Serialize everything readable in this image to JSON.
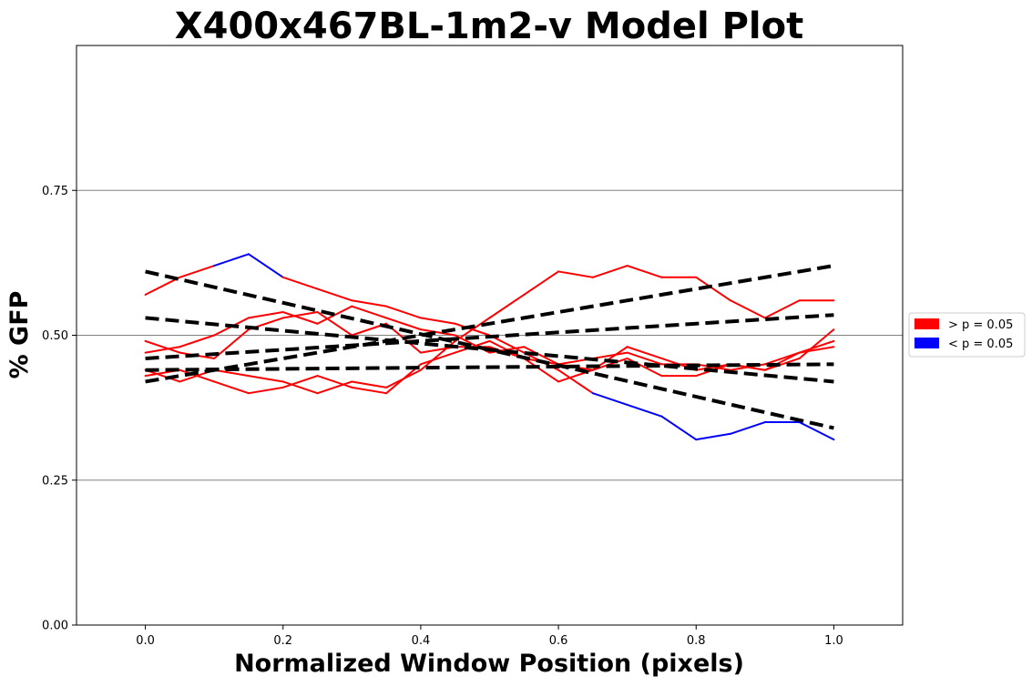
{
  "chart_data": {
    "type": "line",
    "title": "X400x467BL-1m2-v Model Plot",
    "xlabel": "Normalized Window Position (pixels)",
    "ylabel": "% GFP",
    "xlim": [
      -0.1,
      1.1
    ],
    "ylim": [
      0.0,
      1.0
    ],
    "xticks": [
      "0.0",
      "0.2",
      "0.4",
      "0.6",
      "0.8",
      "1.0"
    ],
    "yticks": [
      "0.00",
      "0.25",
      "0.50",
      "0.75"
    ],
    "grid": "horizontal",
    "legend_position": "right-outside",
    "legend": [
      {
        "label": "> p = 0.05",
        "color": "#ff0000"
      },
      {
        "label": "< p = 0.05",
        "color": "#0000ff"
      }
    ],
    "series": [
      {
        "x": [
          0.0,
          0.05,
          0.1,
          0.15,
          0.2,
          0.25,
          0.3,
          0.35,
          0.4,
          0.45,
          0.5,
          0.55,
          0.6,
          0.65,
          0.7,
          0.75,
          0.8,
          0.85,
          0.9,
          0.95,
          1.0
        ],
        "y": [
          0.57,
          0.6,
          0.62,
          0.64,
          0.6,
          0.58,
          0.56,
          0.55,
          0.53,
          0.52,
          0.5,
          0.47,
          0.44,
          0.4,
          0.38,
          0.36,
          0.32,
          0.33,
          0.35,
          0.35,
          0.32
        ],
        "significant": [
          false,
          false,
          true,
          true,
          true,
          false,
          false,
          false,
          false,
          false,
          false,
          false,
          false,
          true,
          true,
          true,
          true,
          true,
          true,
          true,
          true
        ]
      },
      {
        "x": [
          0.0,
          0.05,
          0.1,
          0.15,
          0.2,
          0.25,
          0.3,
          0.35,
          0.4,
          0.45,
          0.5,
          0.55,
          0.6,
          0.65,
          0.7,
          0.75,
          0.8,
          0.85,
          0.9,
          0.95,
          1.0
        ],
        "y": [
          0.44,
          0.42,
          0.44,
          0.43,
          0.42,
          0.4,
          0.42,
          0.41,
          0.44,
          0.49,
          0.53,
          0.57,
          0.61,
          0.6,
          0.62,
          0.6,
          0.6,
          0.56,
          0.53,
          0.56,
          0.56
        ],
        "significant": [
          false,
          false,
          false,
          false,
          false,
          false,
          false,
          false,
          false,
          false,
          false,
          false,
          true,
          false,
          true,
          false,
          true,
          false,
          false,
          false,
          false
        ]
      },
      {
        "x": [
          0.0,
          0.05,
          0.1,
          0.15,
          0.2,
          0.25,
          0.3,
          0.35,
          0.4,
          0.45,
          0.5,
          0.55,
          0.6,
          0.65,
          0.7,
          0.75,
          0.8,
          0.85,
          0.9,
          0.95,
          1.0
        ],
        "y": [
          0.49,
          0.47,
          0.46,
          0.51,
          0.53,
          0.54,
          0.5,
          0.52,
          0.47,
          0.48,
          0.48,
          0.46,
          0.45,
          0.44,
          0.48,
          0.46,
          0.44,
          0.45,
          0.44,
          0.47,
          0.49
        ],
        "significant": [
          false,
          false,
          false,
          false,
          false,
          false,
          false,
          false,
          false,
          false,
          false,
          false,
          false,
          false,
          false,
          false,
          false,
          false,
          false,
          false,
          false
        ]
      },
      {
        "x": [
          0.0,
          0.05,
          0.1,
          0.15,
          0.2,
          0.25,
          0.3,
          0.35,
          0.4,
          0.45,
          0.5,
          0.55,
          0.6,
          0.65,
          0.7,
          0.75,
          0.8,
          0.85,
          0.9,
          0.95,
          1.0
        ],
        "y": [
          0.43,
          0.44,
          0.42,
          0.4,
          0.41,
          0.43,
          0.41,
          0.4,
          0.45,
          0.47,
          0.49,
          0.46,
          0.42,
          0.44,
          0.46,
          0.43,
          0.43,
          0.45,
          0.44,
          0.46,
          0.51
        ],
        "significant": [
          false,
          false,
          false,
          false,
          false,
          true,
          false,
          false,
          false,
          false,
          false,
          false,
          false,
          false,
          false,
          false,
          false,
          false,
          false,
          false,
          false
        ]
      },
      {
        "x": [
          0.0,
          0.05,
          0.1,
          0.15,
          0.2,
          0.25,
          0.3,
          0.35,
          0.4,
          0.45,
          0.5,
          0.55,
          0.6,
          0.65,
          0.7,
          0.75,
          0.8,
          0.85,
          0.9,
          0.95,
          1.0
        ],
        "y": [
          0.47,
          0.48,
          0.5,
          0.53,
          0.54,
          0.52,
          0.55,
          0.53,
          0.51,
          0.5,
          0.47,
          0.48,
          0.45,
          0.46,
          0.47,
          0.45,
          0.45,
          0.44,
          0.45,
          0.47,
          0.48
        ],
        "significant": [
          false,
          false,
          false,
          false,
          false,
          false,
          false,
          false,
          false,
          false,
          false,
          false,
          false,
          false,
          false,
          false,
          false,
          false,
          false,
          false,
          false
        ]
      }
    ],
    "fit_lines": [
      {
        "x": [
          0.0,
          1.0
        ],
        "y": [
          0.61,
          0.34
        ]
      },
      {
        "x": [
          0.0,
          1.0
        ],
        "y": [
          0.53,
          0.42
        ]
      },
      {
        "x": [
          0.0,
          1.0
        ],
        "y": [
          0.42,
          0.62
        ]
      },
      {
        "x": [
          0.0,
          1.0
        ],
        "y": [
          0.46,
          0.535
        ]
      },
      {
        "x": [
          0.0,
          1.0
        ],
        "y": [
          0.44,
          0.45
        ]
      }
    ],
    "colors": {
      "above": "#ff0000",
      "below": "#0000ff",
      "fit": "#000000",
      "grid": "#808080"
    }
  }
}
